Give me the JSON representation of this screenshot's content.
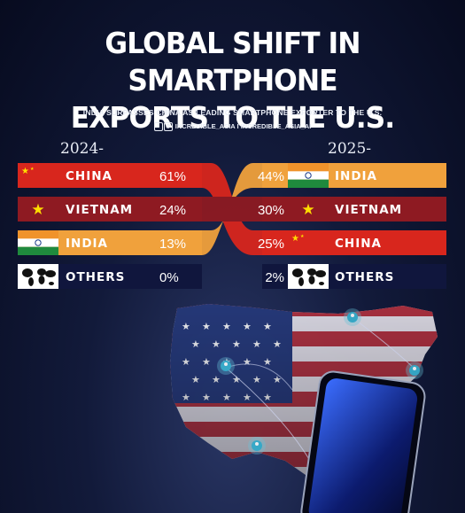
{
  "header": {
    "title_line1": "GLOBAL SHIFT IN SMARTPHONE",
    "title_line2": "EXPORTS TO THE U.S.",
    "subtitle": "INDIA SURPASSES CHINA AS LEADING SMARTPHONE EXPORTER TO THE U.S.",
    "social": "INCREDIBLE_ASIA I INCREDIBLE_ASIA_AI"
  },
  "icons": [
    "facebook-icon",
    "instagram-icon",
    "china-flag-icon",
    "vietnam-flag-icon",
    "india-flag-icon",
    "world-map-icon",
    "usa-map-icon",
    "smartphone-icon",
    "user-location-icon"
  ],
  "colors": {
    "china": "#d8261d",
    "vietnam": "#8e1a22",
    "india": "#f0a13c",
    "others": "#10163d",
    "background": "#0b1230"
  },
  "chart_data": {
    "type": "table",
    "title": "GLOBAL SHIFT IN SMARTPHONE EXPORTS TO THE U.S.",
    "subtitle": "INDIA SURPASSES CHINA AS LEADING SMARTPHONE EXPORTER TO THE U.S.",
    "columns": [
      "2024-",
      "2025-"
    ],
    "y2024": [
      {
        "country": "CHINA",
        "share": 61,
        "label": "61%"
      },
      {
        "country": "VIETNAM",
        "share": 24,
        "label": "24%"
      },
      {
        "country": "INDIA",
        "share": 13,
        "label": "13%"
      },
      {
        "country": "OTHERS",
        "share": 0,
        "label": "0%"
      }
    ],
    "y2025": [
      {
        "country": "INDIA",
        "share": 44,
        "label": "44%"
      },
      {
        "country": "VIETNAM",
        "share": 30,
        "label": "30%"
      },
      {
        "country": "CHINA",
        "share": 25,
        "label": "25%"
      },
      {
        "country": "OTHERS",
        "share": 2,
        "label": "2%"
      }
    ],
    "unit": "%"
  }
}
